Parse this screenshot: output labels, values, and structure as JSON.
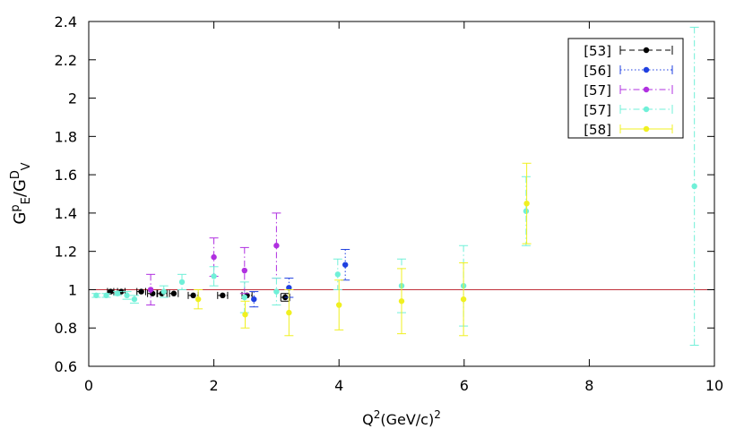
{
  "chart_data": {
    "type": "scatter",
    "title": "",
    "xlabel": {
      "base": "Q",
      "sup1": "2",
      "mid": "(GeV/c)",
      "sup2": "2"
    },
    "ylabel": {
      "base": "G",
      "sup1": "p",
      "sub1": "E",
      "mid": "/G",
      "sup2": "D",
      "sub2": "V"
    },
    "xlim": [
      0,
      10
    ],
    "ylim": [
      0.6,
      2.4
    ],
    "x_ticks": [
      0,
      2,
      4,
      6,
      8,
      10
    ],
    "x_tick_labels": [
      "0",
      "2",
      "4",
      "6",
      "8",
      "10"
    ],
    "y_ticks": [
      0.6,
      0.8,
      1.0,
      1.2,
      1.4,
      1.6,
      1.8,
      2.0,
      2.2,
      2.4
    ],
    "y_tick_labels": [
      "0.6",
      "0.8",
      "1",
      "1.2",
      "1.4",
      "1.6",
      "1.8",
      "2",
      "2.2",
      "2.4"
    ],
    "grid": false,
    "legend_position": "top-right",
    "reference_line": {
      "y": 1.0,
      "color": "#c0303a"
    },
    "series": [
      {
        "name": "[53]",
        "color": "#000000",
        "style": "dashed",
        "errors": "x",
        "points": [
          {
            "x": 0.35,
            "y": 0.99,
            "dx": 0.05
          },
          {
            "x": 0.52,
            "y": 0.99,
            "dx": 0.06
          },
          {
            "x": 0.84,
            "y": 0.99,
            "dx": 0.07
          },
          {
            "x": 1.02,
            "y": 0.98,
            "dx": 0.08
          },
          {
            "x": 1.17,
            "y": 0.98,
            "dx": 0.08
          },
          {
            "x": 1.36,
            "y": 0.98,
            "dx": 0.07
          },
          {
            "x": 1.67,
            "y": 0.97,
            "dx": 0.08
          },
          {
            "x": 2.14,
            "y": 0.97,
            "dx": 0.08
          },
          {
            "x": 2.53,
            "y": 0.97,
            "dx": 0.08
          },
          {
            "x": 3.14,
            "y": 0.96,
            "dx": 0.07,
            "dy": 0.02
          }
        ]
      },
      {
        "name": "[56]",
        "color": "#2040e0",
        "style": "dotted",
        "errors": "y",
        "points": [
          {
            "x": 2.64,
            "y": 0.95,
            "dy": 0.04
          },
          {
            "x": 3.2,
            "y": 1.01,
            "dy": 0.05
          },
          {
            "x": 4.1,
            "y": 1.13,
            "dy": 0.08
          }
        ]
      },
      {
        "name": "[57]",
        "color": "#b030e0",
        "style": "dashdot",
        "errors": "y",
        "points": [
          {
            "x": 0.99,
            "y": 1.0,
            "dy": 0.08
          },
          {
            "x": 2.0,
            "y": 1.17,
            "dy": 0.1
          },
          {
            "x": 2.49,
            "y": 1.1,
            "dy": 0.12
          },
          {
            "x": 3.0,
            "y": 1.23,
            "dy": 0.17
          }
        ]
      },
      {
        "name": "[57]",
        "color": "#70f0d8",
        "style": "dashdot",
        "errors": "y",
        "points": [
          {
            "x": 0.12,
            "y": 0.97,
            "dy": 0.01
          },
          {
            "x": 0.28,
            "y": 0.97,
            "dy": 0.01
          },
          {
            "x": 0.46,
            "y": 0.98,
            "dy": 0.01
          },
          {
            "x": 0.61,
            "y": 0.97,
            "dy": 0.02
          },
          {
            "x": 0.73,
            "y": 0.95,
            "dy": 0.02
          },
          {
            "x": 1.2,
            "y": 0.99,
            "dy": 0.03
          },
          {
            "x": 1.49,
            "y": 1.04,
            "dy": 0.04
          },
          {
            "x": 2.0,
            "y": 1.07,
            "dy": 0.05
          },
          {
            "x": 2.49,
            "y": 0.96,
            "dy": 0.08
          },
          {
            "x": 3.0,
            "y": 0.99,
            "dy": 0.07
          },
          {
            "x": 3.98,
            "y": 1.08,
            "dy": 0.08
          },
          {
            "x": 5.0,
            "y": 1.02,
            "dy": 0.14
          },
          {
            "x": 5.99,
            "y": 1.02,
            "dy": 0.21
          },
          {
            "x": 6.99,
            "y": 1.41,
            "dy": 0.18
          },
          {
            "x": 9.68,
            "y": 1.54,
            "dy": 0.83
          }
        ]
      },
      {
        "name": "[58]",
        "color": "#f0f020",
        "style": "solid",
        "errors": "y",
        "points": [
          {
            "x": 1.75,
            "y": 0.95,
            "dy": 0.05
          },
          {
            "x": 2.5,
            "y": 0.87,
            "dy": 0.07
          },
          {
            "x": 3.2,
            "y": 0.88,
            "dy": 0.12
          },
          {
            "x": 4.0,
            "y": 0.92,
            "dy": 0.13
          },
          {
            "x": 5.0,
            "y": 0.94,
            "dy": 0.17
          },
          {
            "x": 5.99,
            "y": 0.95,
            "dy": 0.19
          },
          {
            "x": 7.0,
            "y": 1.45,
            "dy": 0.21
          }
        ]
      }
    ]
  }
}
